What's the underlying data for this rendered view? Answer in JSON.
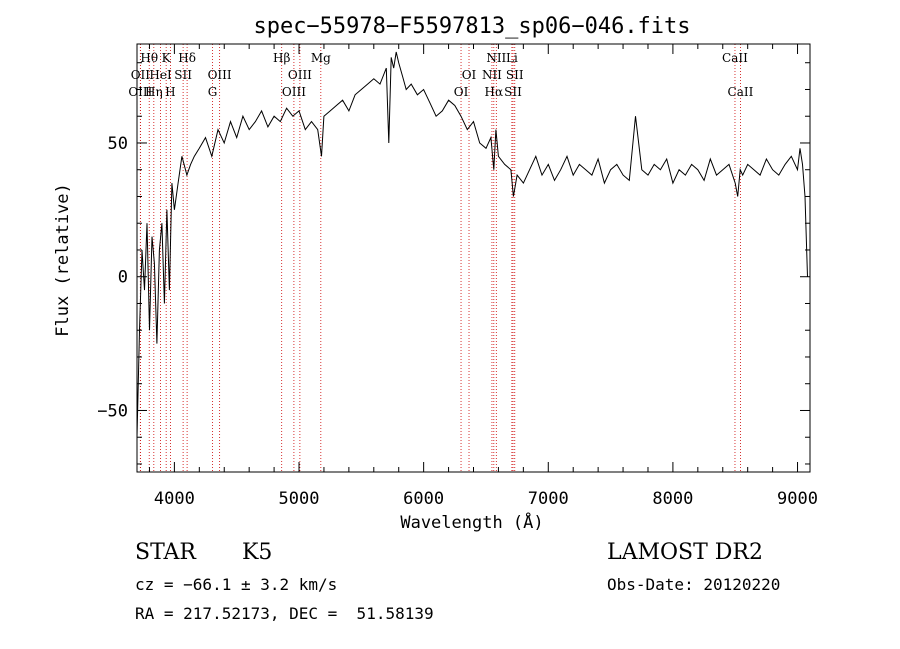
{
  "chart_data": {
    "type": "line",
    "title": "spec−55978−F5597813_sp06−046.fits",
    "xlabel": "Wavelength (Å)",
    "ylabel": "Flux (relative)",
    "xlim": [
      3700,
      9100
    ],
    "ylim": [
      -73,
      87
    ],
    "xticks": [
      4000,
      5000,
      6000,
      7000,
      8000,
      9000
    ],
    "yticks": [
      -50,
      0,
      50
    ],
    "grid": false,
    "series": [
      {
        "x": [
          3700,
          3720,
          3740,
          3760,
          3780,
          3800,
          3820,
          3840,
          3860,
          3880,
          3900,
          3920,
          3940,
          3960,
          3980,
          4000,
          4030,
          4060,
          4100,
          4130,
          4160,
          4200,
          4250,
          4300,
          4350,
          4400,
          4450,
          4500,
          4550,
          4600,
          4650,
          4700,
          4750,
          4800,
          4850,
          4900,
          4950,
          5000,
          5050,
          5100,
          5150,
          5180,
          5200,
          5250,
          5300,
          5350,
          5400,
          5450,
          5500,
          5550,
          5600,
          5650,
          5700,
          5720,
          5740,
          5760,
          5780,
          5800,
          5830,
          5860,
          5900,
          5950,
          6000,
          6050,
          6100,
          6150,
          6200,
          6250,
          6300,
          6350,
          6400,
          6450,
          6500,
          6540,
          6563,
          6580,
          6600,
          6650,
          6700,
          6720,
          6750,
          6800,
          6850,
          6900,
          6950,
          7000,
          7050,
          7100,
          7150,
          7200,
          7250,
          7300,
          7350,
          7400,
          7450,
          7500,
          7550,
          7600,
          7650,
          7700,
          7750,
          7800,
          7850,
          7900,
          7950,
          8000,
          8050,
          8100,
          8150,
          8200,
          8250,
          8300,
          8350,
          8400,
          8450,
          8500,
          8520,
          8540,
          8560,
          8600,
          8650,
          8700,
          8750,
          8800,
          8850,
          8900,
          8950,
          9000,
          9020,
          9040,
          9060,
          9080
        ],
        "y": [
          -60,
          -20,
          10,
          -5,
          20,
          -20,
          15,
          5,
          -25,
          10,
          20,
          -10,
          25,
          -5,
          35,
          25,
          35,
          45,
          38,
          42,
          45,
          48,
          52,
          45,
          55,
          50,
          58,
          52,
          60,
          55,
          58,
          62,
          56,
          60,
          58,
          63,
          60,
          62,
          55,
          58,
          55,
          45,
          60,
          62,
          64,
          66,
          62,
          68,
          70,
          72,
          74,
          72,
          78,
          50,
          82,
          78,
          84,
          80,
          75,
          70,
          72,
          68,
          70,
          65,
          60,
          62,
          66,
          64,
          60,
          55,
          58,
          50,
          48,
          52,
          40,
          55,
          45,
          42,
          40,
          30,
          38,
          35,
          40,
          45,
          38,
          42,
          36,
          40,
          45,
          38,
          42,
          40,
          38,
          44,
          35,
          40,
          42,
          38,
          36,
          60,
          40,
          38,
          42,
          40,
          44,
          35,
          40,
          38,
          42,
          40,
          36,
          44,
          38,
          40,
          42,
          35,
          30,
          40,
          38,
          42,
          40,
          38,
          44,
          40,
          38,
          42,
          45,
          40,
          48,
          42,
          30,
          0
        ]
      }
    ],
    "lines": [
      {
        "label": "Hθ",
        "x": 3798,
        "row": 1
      },
      {
        "label": "OII",
        "x": 3727,
        "row": 2
      },
      {
        "label": "OIII",
        "x": 3727,
        "row": 3
      },
      {
        "label": "K",
        "x": 3934,
        "row": 1
      },
      {
        "label": "HeI",
        "x": 3889,
        "row": 2
      },
      {
        "label": "Hη",
        "x": 3835,
        "row": 3
      },
      {
        "label": "H",
        "x": 3968,
        "row": 3
      },
      {
        "label": "SII",
        "x": 4070,
        "row": 2
      },
      {
        "label": "Hδ",
        "x": 4102,
        "row": 1
      },
      {
        "label": "OIII",
        "x": 4363,
        "row": 2
      },
      {
        "label": "G",
        "x": 4306,
        "row": 3
      },
      {
        "label": "Hβ",
        "x": 4861,
        "row": 1
      },
      {
        "label": "OIII",
        "x": 5007,
        "row": 2
      },
      {
        "label": "OIII",
        "x": 4959,
        "row": 3
      },
      {
        "label": "Mg",
        "x": 5175,
        "row": 1
      },
      {
        "label": "OI",
        "x": 6364,
        "row": 2
      },
      {
        "label": "OI",
        "x": 6300,
        "row": 3
      },
      {
        "label": "NII",
        "x": 6583,
        "row": 1
      },
      {
        "label": "Li",
        "x": 6708,
        "row": 1
      },
      {
        "label": "NII",
        "x": 6548,
        "row": 2
      },
      {
        "label": "SII",
        "x": 6731,
        "row": 2
      },
      {
        "label": "Hα",
        "x": 6563,
        "row": 3
      },
      {
        "label": "SII",
        "x": 6717,
        "row": 3
      },
      {
        "label": "CaII",
        "x": 8498,
        "row": 1
      },
      {
        "label": "CaII",
        "x": 8542,
        "row": 3
      }
    ]
  },
  "info": {
    "object_class": "STAR",
    "subclass": "K5",
    "survey": "LAMOST DR2",
    "redshift": "cz = −66.1 ± 3.2 km/s",
    "obs_date": "Obs-Date: 20120220",
    "coords": "RA = 217.52173, DEC =  51.58139"
  },
  "colors": {
    "marker_lines": "#cc0000",
    "spectrum": "#000000"
  }
}
